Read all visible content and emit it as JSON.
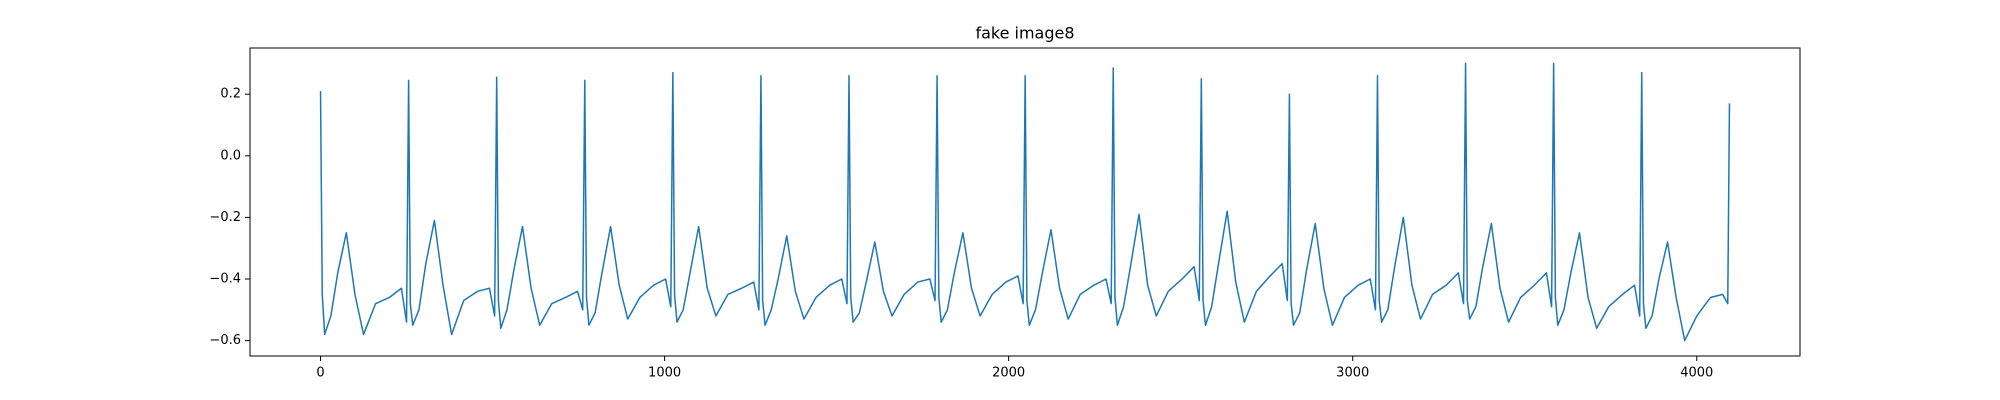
{
  "chart_data": {
    "type": "line",
    "title": "fake image8",
    "xlim": [
      -205,
      4300
    ],
    "ylim": [
      -0.65,
      0.35
    ],
    "xticks": [
      0,
      1000,
      2000,
      3000,
      4000
    ],
    "yticks": [
      {
        "value": -0.6,
        "label": "−0.6"
      },
      {
        "value": -0.4,
        "label": "−0.4"
      },
      {
        "value": -0.2,
        "label": "−0.2"
      },
      {
        "value": 0,
        "label": "0.0"
      },
      0.2
    ],
    "series": [
      {
        "color": "#1f77b4",
        "x": [
          0,
          5,
          12,
          30,
          50,
          75,
          100,
          125,
          160,
          200,
          235,
          250,
          256,
          261,
          268,
          286,
          306,
          331,
          356,
          381,
          416,
          456,
          491,
          506,
          512,
          517,
          524,
          542,
          562,
          587,
          612,
          637,
          672,
          712,
          747,
          762,
          768,
          773,
          780,
          798,
          818,
          843,
          868,
          893,
          928,
          968,
          1003,
          1018,
          1024,
          1029,
          1036,
          1054,
          1074,
          1099,
          1124,
          1149,
          1184,
          1224,
          1259,
          1274,
          1280,
          1285,
          1292,
          1310,
          1330,
          1355,
          1380,
          1405,
          1440,
          1480,
          1515,
          1530,
          1536,
          1541,
          1548,
          1566,
          1586,
          1611,
          1636,
          1661,
          1696,
          1736,
          1771,
          1786,
          1792,
          1797,
          1804,
          1822,
          1842,
          1867,
          1892,
          1917,
          1952,
          1992,
          2027,
          2042,
          2048,
          2053,
          2060,
          2078,
          2098,
          2123,
          2148,
          2173,
          2208,
          2248,
          2283,
          2298,
          2304,
          2309,
          2316,
          2334,
          2354,
          2379,
          2404,
          2429,
          2464,
          2504,
          2539,
          2554,
          2560,
          2565,
          2572,
          2590,
          2610,
          2635,
          2660,
          2685,
          2720,
          2760,
          2795,
          2810,
          2816,
          2821,
          2828,
          2846,
          2866,
          2891,
          2916,
          2941,
          2976,
          3016,
          3051,
          3066,
          3072,
          3077,
          3084,
          3102,
          3122,
          3147,
          3172,
          3197,
          3232,
          3272,
          3307,
          3322,
          3328,
          3333,
          3340,
          3358,
          3378,
          3403,
          3428,
          3453,
          3488,
          3528,
          3563,
          3578,
          3584,
          3589,
          3596,
          3614,
          3634,
          3659,
          3684,
          3709,
          3744,
          3784,
          3819,
          3834,
          3840,
          3845,
          3852,
          3870,
          3890,
          3915,
          3940,
          3965,
          4000,
          4040,
          4075,
          4090,
          4095
        ],
        "values": [
          0.21,
          -0.45,
          -0.58,
          -0.52,
          -0.38,
          -0.25,
          -0.45,
          -0.58,
          -0.48,
          -0.46,
          -0.43,
          -0.54,
          0.245,
          -0.48,
          -0.55,
          -0.5,
          -0.35,
          -0.21,
          -0.42,
          -0.58,
          -0.47,
          -0.44,
          -0.43,
          -0.52,
          0.255,
          -0.47,
          -0.56,
          -0.5,
          -0.37,
          -0.23,
          -0.43,
          -0.55,
          -0.48,
          -0.46,
          -0.44,
          -0.5,
          0.245,
          -0.46,
          -0.55,
          -0.51,
          -0.38,
          -0.23,
          -0.42,
          -0.53,
          -0.46,
          -0.42,
          -0.4,
          -0.49,
          0.27,
          -0.45,
          -0.54,
          -0.5,
          -0.38,
          -0.23,
          -0.43,
          -0.52,
          -0.45,
          -0.43,
          -0.41,
          -0.5,
          0.26,
          -0.47,
          -0.55,
          -0.5,
          -0.4,
          -0.26,
          -0.44,
          -0.53,
          -0.46,
          -0.42,
          -0.4,
          -0.48,
          0.26,
          -0.46,
          -0.54,
          -0.51,
          -0.41,
          -0.28,
          -0.44,
          -0.52,
          -0.45,
          -0.41,
          -0.4,
          -0.47,
          0.26,
          -0.46,
          -0.54,
          -0.5,
          -0.38,
          -0.25,
          -0.43,
          -0.52,
          -0.45,
          -0.41,
          -0.39,
          -0.48,
          0.26,
          -0.47,
          -0.55,
          -0.5,
          -0.38,
          -0.24,
          -0.43,
          -0.53,
          -0.45,
          -0.42,
          -0.4,
          -0.48,
          0.285,
          -0.46,
          -0.55,
          -0.49,
          -0.36,
          -0.19,
          -0.42,
          -0.52,
          -0.44,
          -0.4,
          -0.36,
          -0.47,
          0.25,
          -0.47,
          -0.55,
          -0.49,
          -0.35,
          -0.18,
          -0.41,
          -0.54,
          -0.44,
          -0.39,
          -0.35,
          -0.47,
          0.2,
          -0.48,
          -0.55,
          -0.51,
          -0.37,
          -0.22,
          -0.43,
          -0.55,
          -0.46,
          -0.42,
          -0.4,
          -0.5,
          0.26,
          -0.47,
          -0.54,
          -0.5,
          -0.36,
          -0.2,
          -0.42,
          -0.53,
          -0.45,
          -0.42,
          -0.38,
          -0.48,
          0.3,
          -0.47,
          -0.53,
          -0.49,
          -0.36,
          -0.22,
          -0.43,
          -0.54,
          -0.46,
          -0.42,
          -0.38,
          -0.49,
          0.3,
          -0.46,
          -0.55,
          -0.5,
          -0.38,
          -0.25,
          -0.46,
          -0.56,
          -0.49,
          -0.45,
          -0.42,
          -0.52,
          0.27,
          -0.48,
          -0.56,
          -0.52,
          -0.4,
          -0.28,
          -0.46,
          -0.6,
          -0.52,
          -0.46,
          -0.45,
          -0.48,
          0.17
        ]
      }
    ]
  }
}
